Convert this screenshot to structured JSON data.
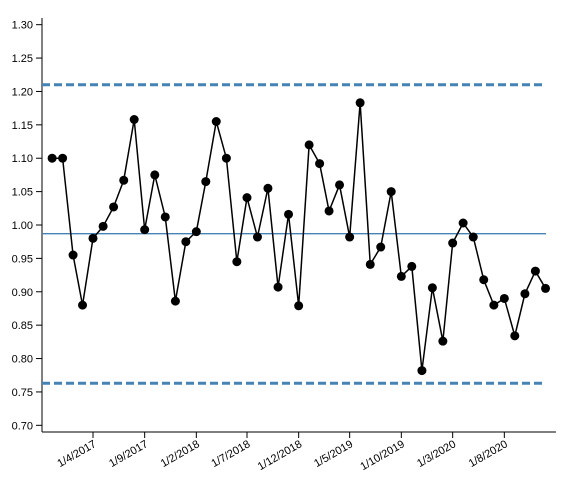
{
  "chart_data": {
    "type": "line",
    "x": [
      "2016-12-01",
      "2017-01-01",
      "2017-02-01",
      "2017-03-01",
      "2017-04-01",
      "2017-05-01",
      "2017-06-01",
      "2017-07-01",
      "2017-08-01",
      "2017-09-01",
      "2017-10-01",
      "2017-11-01",
      "2017-12-01",
      "2018-01-01",
      "2018-02-01",
      "2018-03-01",
      "2018-04-01",
      "2018-05-01",
      "2018-06-01",
      "2018-07-01",
      "2018-08-01",
      "2018-09-01",
      "2018-10-01",
      "2018-11-01",
      "2018-12-01",
      "2019-01-01",
      "2019-02-01",
      "2019-03-01",
      "2019-04-01",
      "2019-05-01",
      "2019-06-01",
      "2019-07-01",
      "2019-08-01",
      "2019-09-01",
      "2019-10-01",
      "2019-11-01",
      "2019-12-01",
      "2020-01-01",
      "2020-02-01",
      "2020-03-01",
      "2020-04-01",
      "2020-05-01",
      "2020-06-01",
      "2020-07-01",
      "2020-08-01",
      "2020-09-01",
      "2020-10-01",
      "2020-11-01",
      "2020-12-01"
    ],
    "series": [
      {
        "color": "#000000",
        "values": [
          1.1,
          1.1,
          0.955,
          0.88,
          0.98,
          0.998,
          1.027,
          1.067,
          1.158,
          0.993,
          1.075,
          1.012,
          0.886,
          0.975,
          0.99,
          1.065,
          1.155,
          1.1,
          0.945,
          1.041,
          0.982,
          1.055,
          0.907,
          1.016,
          0.879,
          1.12,
          1.092,
          1.021,
          1.06,
          0.982,
          1.183,
          0.941,
          0.967,
          1.05,
          0.923,
          0.938,
          0.782,
          0.906,
          0.826,
          0.973,
          1.003,
          0.982,
          0.918,
          0.88,
          0.89,
          0.834,
          0.897,
          0.931,
          0.905
        ]
      }
    ],
    "reference_lines": [
      {
        "value": 1.21,
        "color": "#4682b4",
        "style": "dashed"
      },
      {
        "value": 0.987,
        "color": "#4682b4",
        "style": "solid"
      },
      {
        "value": 0.763,
        "color": "#4682b4",
        "style": "dashed"
      }
    ],
    "xlim": [
      "2016-11-01",
      "2021-01-01"
    ],
    "xticks": [
      {
        "value": "2017-04-01",
        "label": "1/4/2017"
      },
      {
        "value": "2017-09-01",
        "label": "1/9/2017"
      },
      {
        "value": "2018-02-01",
        "label": "1/2/2018"
      },
      {
        "value": "2018-07-01",
        "label": "1/7/2018"
      },
      {
        "value": "2018-12-01",
        "label": "1/12/2018"
      },
      {
        "value": "2019-05-01",
        "label": "1/5/2019"
      },
      {
        "value": "2019-10-01",
        "label": "1/10/2019"
      },
      {
        "value": "2020-03-01",
        "label": "1/3/2020"
      },
      {
        "value": "2020-08-01",
        "label": "1/8/2020"
      }
    ],
    "ylim": [
      0.69,
      1.31
    ],
    "yticks": [
      {
        "value": 0.7,
        "label": "0.70"
      },
      {
        "value": 0.75,
        "label": "0.75"
      },
      {
        "value": 0.8,
        "label": "0.80"
      },
      {
        "value": 0.85,
        "label": "0.85"
      },
      {
        "value": 0.9,
        "label": "0.90"
      },
      {
        "value": 0.95,
        "label": "0.95"
      },
      {
        "value": 1.0,
        "label": "1.00"
      },
      {
        "value": 1.05,
        "label": "1.05"
      },
      {
        "value": 1.1,
        "label": "1.10"
      },
      {
        "value": 1.15,
        "label": "1.15"
      },
      {
        "value": 1.2,
        "label": "1.20"
      },
      {
        "value": 1.25,
        "label": "1.25"
      },
      {
        "value": 1.3,
        "label": "1.30"
      }
    ]
  }
}
